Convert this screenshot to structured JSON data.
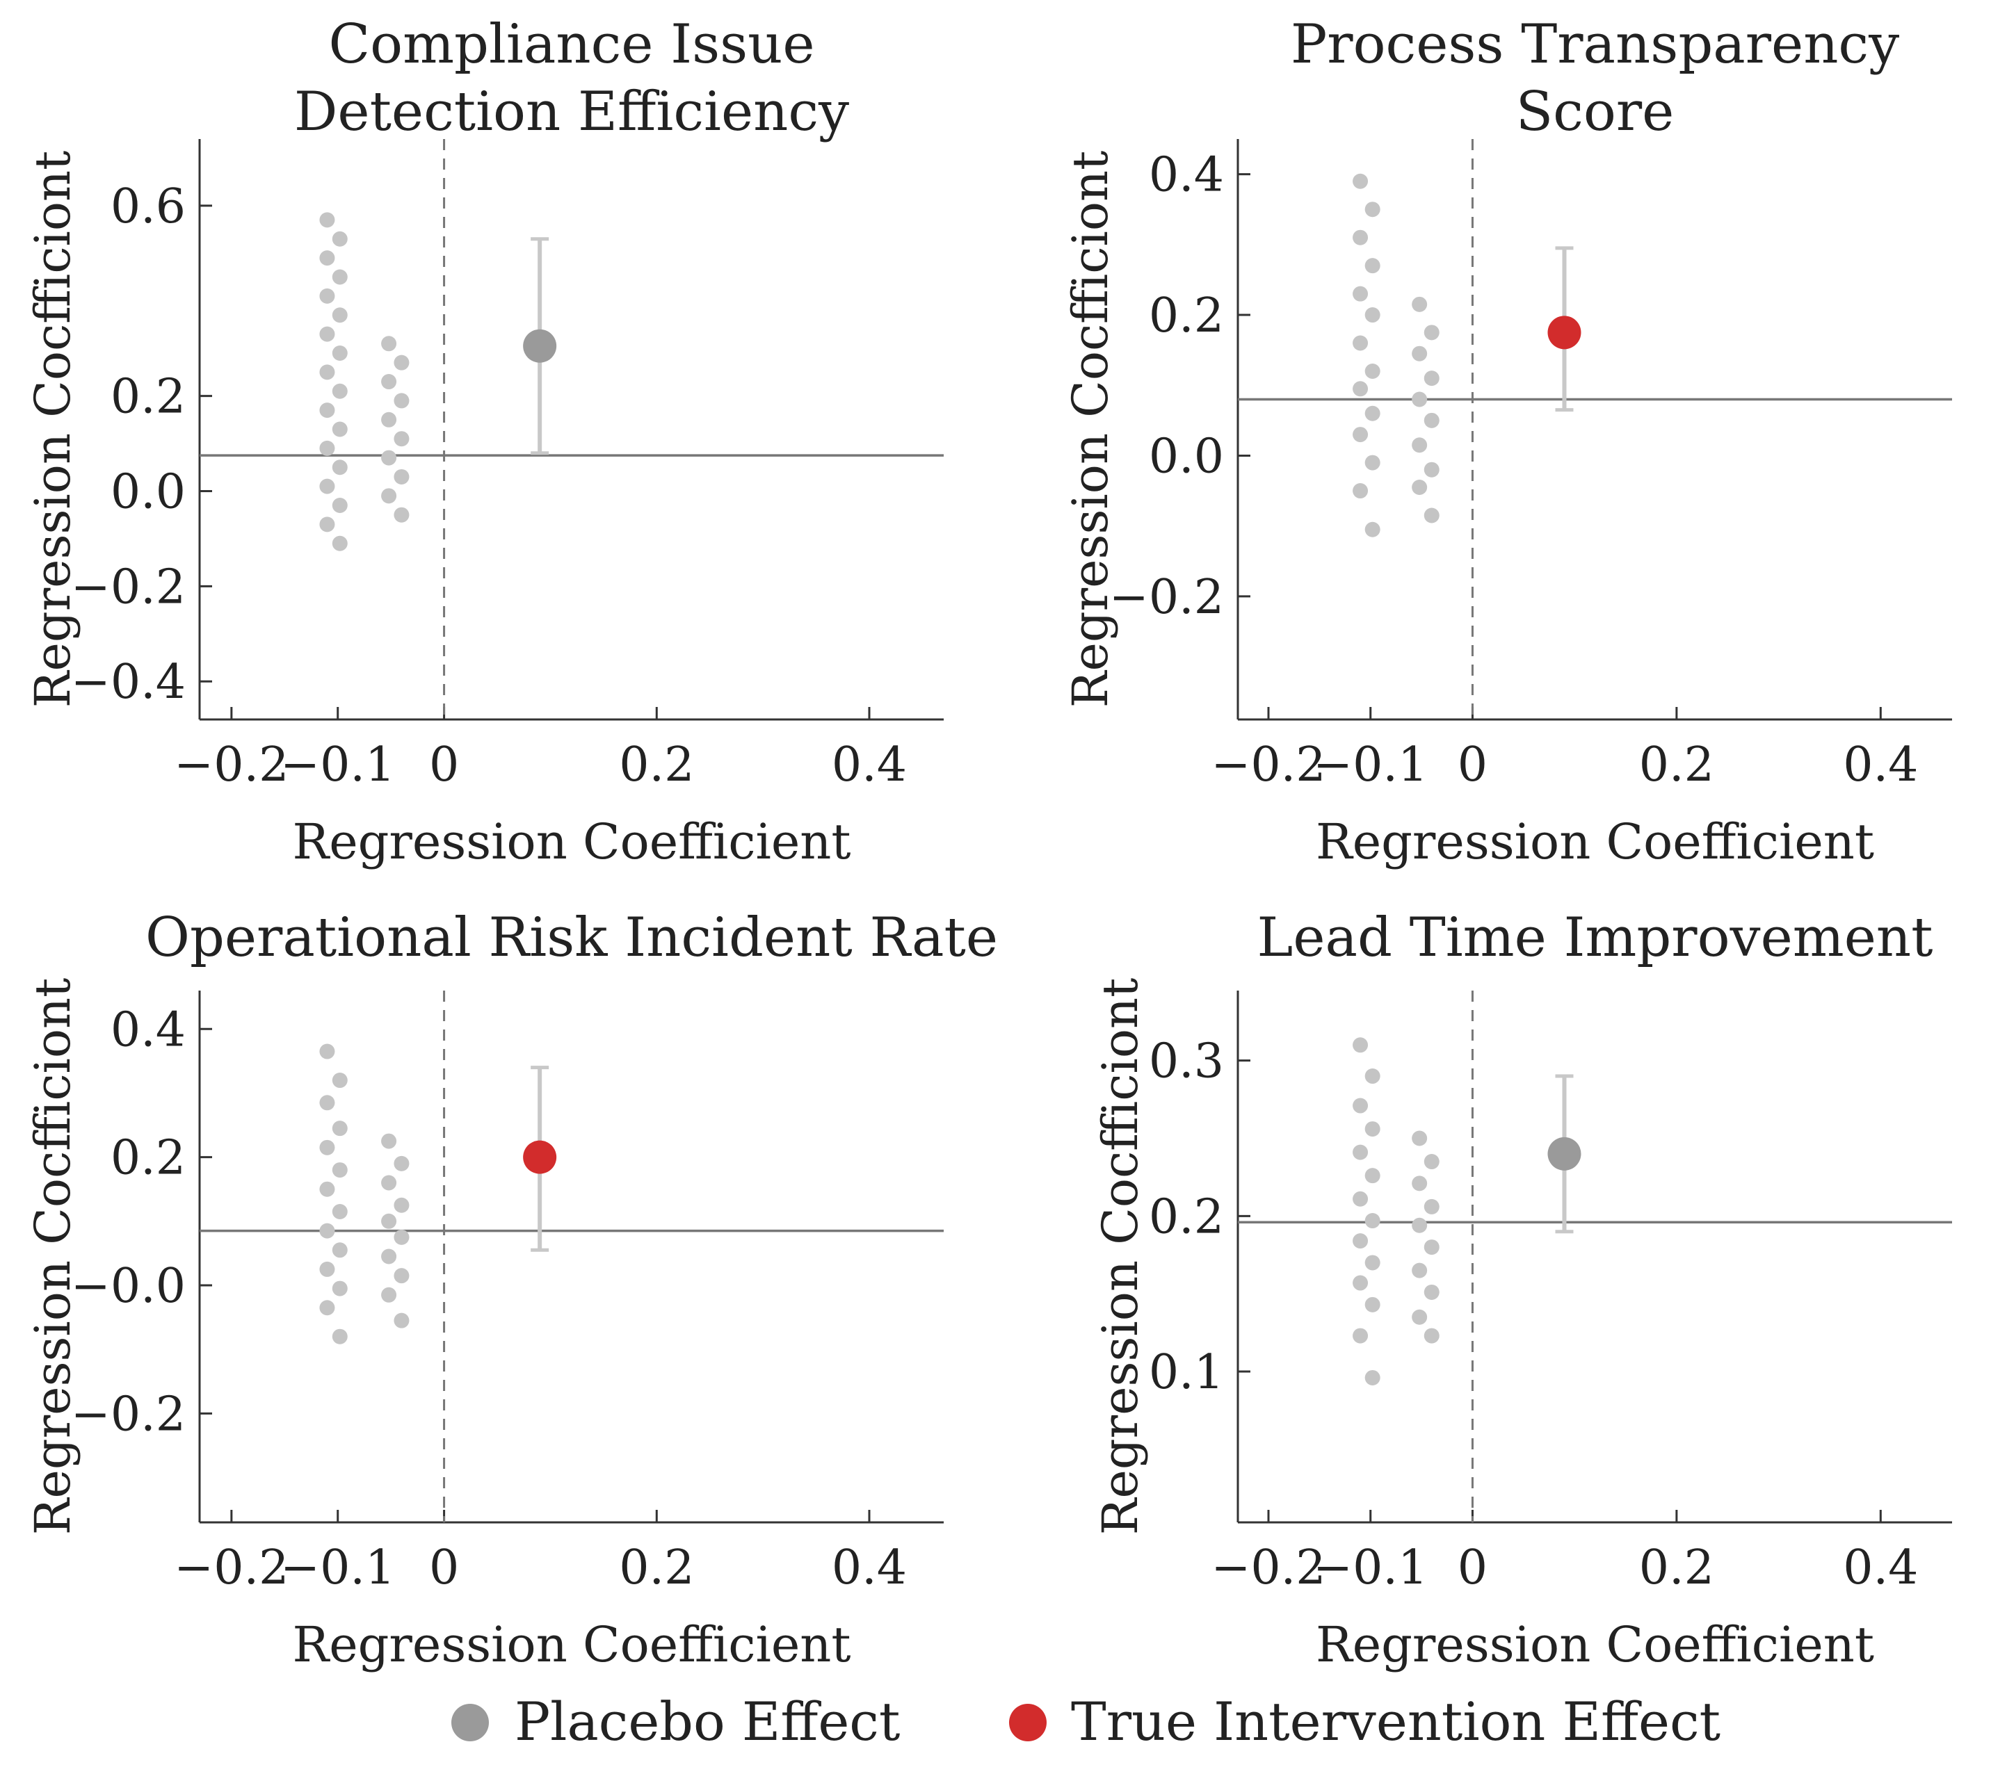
{
  "chart_data": [
    {
      "type": "scatter",
      "title": [
        "Compliance Issue",
        "Detection Efficiency"
      ],
      "xlabel": "Regression Coefficient",
      "ylabel": "Regression Cocfficiont",
      "xlim": [
        -0.23,
        0.47
      ],
      "ylim": [
        -0.48,
        0.74
      ],
      "xticks": [
        -0.2,
        -0.1,
        0,
        0.2,
        0.4
      ],
      "xtick_labels": [
        "−0.2",
        "−0.1",
        "0",
        "0.2",
        "0.4"
      ],
      "yticks": [
        0.6,
        0.2,
        0.0,
        -0.2,
        -0.4
      ],
      "ytick_labels": [
        "0.6",
        "0.2",
        "0.0",
        "−0.2",
        "−0.4"
      ],
      "hline": 0.075,
      "vline": 0,
      "placebo_points": [
        {
          "x": -0.11,
          "y": 0.57
        },
        {
          "x": -0.11,
          "y": 0.49
        },
        {
          "x": -0.11,
          "y": 0.41
        },
        {
          "x": -0.11,
          "y": 0.33
        },
        {
          "x": -0.11,
          "y": 0.25
        },
        {
          "x": -0.11,
          "y": 0.17
        },
        {
          "x": -0.11,
          "y": 0.09
        },
        {
          "x": -0.11,
          "y": 0.01
        },
        {
          "x": -0.11,
          "y": -0.07
        },
        {
          "x": -0.098,
          "y": 0.53
        },
        {
          "x": -0.098,
          "y": 0.45
        },
        {
          "x": -0.098,
          "y": 0.37
        },
        {
          "x": -0.098,
          "y": 0.29
        },
        {
          "x": -0.098,
          "y": 0.21
        },
        {
          "x": -0.098,
          "y": 0.13
        },
        {
          "x": -0.098,
          "y": 0.05
        },
        {
          "x": -0.098,
          "y": -0.03
        },
        {
          "x": -0.098,
          "y": -0.11
        },
        {
          "x": -0.052,
          "y": 0.31
        },
        {
          "x": -0.052,
          "y": 0.23
        },
        {
          "x": -0.052,
          "y": 0.15
        },
        {
          "x": -0.052,
          "y": 0.07
        },
        {
          "x": -0.052,
          "y": -0.01
        },
        {
          "x": -0.04,
          "y": 0.27
        },
        {
          "x": -0.04,
          "y": 0.19
        },
        {
          "x": -0.04,
          "y": 0.11
        },
        {
          "x": -0.04,
          "y": 0.03
        },
        {
          "x": -0.04,
          "y": -0.05
        }
      ],
      "estimate": {
        "x": 0.09,
        "y": 0.305,
        "ci": [
          0.08,
          0.53
        ],
        "effect": "placebo"
      }
    },
    {
      "type": "scatter",
      "title": [
        "Process Transparency",
        "Score"
      ],
      "xlabel": "Regression Coefficient",
      "ylabel": "Regression Cocfficiont",
      "xlim": [
        -0.23,
        0.47
      ],
      "ylim": [
        -0.375,
        0.45
      ],
      "xticks": [
        -0.2,
        -0.1,
        0,
        0.2,
        0.4
      ],
      "xtick_labels": [
        "−0.2",
        "−0.1",
        "0",
        "0.2",
        "0.4"
      ],
      "yticks": [
        0.4,
        0.2,
        0.0,
        -0.2
      ],
      "ytick_labels": [
        "0.4",
        "0.2",
        "0.0",
        "−0.2"
      ],
      "hline": 0.08,
      "vline": 0,
      "placebo_points": [
        {
          "x": -0.11,
          "y": 0.39
        },
        {
          "x": -0.11,
          "y": 0.31
        },
        {
          "x": -0.11,
          "y": 0.23
        },
        {
          "x": -0.11,
          "y": 0.16
        },
        {
          "x": -0.11,
          "y": 0.095
        },
        {
          "x": -0.11,
          "y": 0.03
        },
        {
          "x": -0.11,
          "y": -0.05
        },
        {
          "x": -0.098,
          "y": 0.35
        },
        {
          "x": -0.098,
          "y": 0.27
        },
        {
          "x": -0.098,
          "y": 0.2
        },
        {
          "x": -0.098,
          "y": 0.12
        },
        {
          "x": -0.098,
          "y": 0.06
        },
        {
          "x": -0.098,
          "y": -0.01
        },
        {
          "x": -0.098,
          "y": -0.105
        },
        {
          "x": -0.052,
          "y": 0.215
        },
        {
          "x": -0.052,
          "y": 0.145
        },
        {
          "x": -0.052,
          "y": 0.08
        },
        {
          "x": -0.052,
          "y": 0.015
        },
        {
          "x": -0.052,
          "y": -0.045
        },
        {
          "x": -0.04,
          "y": 0.175
        },
        {
          "x": -0.04,
          "y": 0.11
        },
        {
          "x": -0.04,
          "y": 0.05
        },
        {
          "x": -0.04,
          "y": -0.02
        },
        {
          "x": -0.04,
          "y": -0.085
        }
      ],
      "estimate": {
        "x": 0.09,
        "y": 0.175,
        "ci": [
          0.065,
          0.295
        ],
        "effect": "true"
      }
    },
    {
      "type": "scatter",
      "title": [
        "Operational Risk Incident Rate"
      ],
      "xlabel": "Regression Coefficient",
      "ylabel": "Regression Cocfficiont",
      "xlim": [
        -0.23,
        0.47
      ],
      "ylim": [
        -0.37,
        0.46
      ],
      "xticks": [
        -0.2,
        -0.1,
        0,
        0.2,
        0.4
      ],
      "xtick_labels": [
        "−0.2",
        "−0.1",
        "0",
        "0.2",
        "0.4"
      ],
      "yticks": [
        0.4,
        0.2,
        0.0,
        -0.2
      ],
      "ytick_labels": [
        "0.4",
        "0.2",
        "−0.0",
        "−0.2"
      ],
      "hline": 0.085,
      "vline": 0,
      "placebo_points": [
        {
          "x": -0.11,
          "y": 0.365
        },
        {
          "x": -0.11,
          "y": 0.285
        },
        {
          "x": -0.11,
          "y": 0.215
        },
        {
          "x": -0.11,
          "y": 0.15
        },
        {
          "x": -0.11,
          "y": 0.085
        },
        {
          "x": -0.11,
          "y": 0.025
        },
        {
          "x": -0.11,
          "y": -0.035
        },
        {
          "x": -0.098,
          "y": 0.32
        },
        {
          "x": -0.098,
          "y": 0.245
        },
        {
          "x": -0.098,
          "y": 0.18
        },
        {
          "x": -0.098,
          "y": 0.115
        },
        {
          "x": -0.098,
          "y": 0.055
        },
        {
          "x": -0.098,
          "y": -0.005
        },
        {
          "x": -0.098,
          "y": -0.08
        },
        {
          "x": -0.052,
          "y": 0.225
        },
        {
          "x": -0.052,
          "y": 0.16
        },
        {
          "x": -0.052,
          "y": 0.1
        },
        {
          "x": -0.052,
          "y": 0.045
        },
        {
          "x": -0.052,
          "y": -0.015
        },
        {
          "x": -0.04,
          "y": 0.19
        },
        {
          "x": -0.04,
          "y": 0.125
        },
        {
          "x": -0.04,
          "y": 0.075
        },
        {
          "x": -0.04,
          "y": 0.015
        },
        {
          "x": -0.04,
          "y": -0.055
        }
      ],
      "estimate": {
        "x": 0.09,
        "y": 0.2,
        "ci": [
          0.055,
          0.34
        ],
        "effect": "true"
      }
    },
    {
      "type": "scatter",
      "title": [
        "Lead Time Improvement"
      ],
      "xlabel": "Regression Coefficient",
      "ylabel": "Regression Cocfficiont",
      "xlim": [
        -0.23,
        0.47
      ],
      "ylim": [
        0.003,
        0.345
      ],
      "xticks": [
        -0.2,
        -0.1,
        0,
        0.2,
        0.4
      ],
      "xtick_labels": [
        "−0.2",
        "−0.1",
        "0",
        "0.2",
        "0.4"
      ],
      "yticks": [
        0.3,
        0.2,
        0.1
      ],
      "ytick_labels": [
        "0.3",
        "0.2",
        "0.1"
      ],
      "hline": 0.196,
      "vline": 0,
      "placebo_points": [
        {
          "x": -0.11,
          "y": 0.31
        },
        {
          "x": -0.11,
          "y": 0.271
        },
        {
          "x": -0.11,
          "y": 0.241
        },
        {
          "x": -0.11,
          "y": 0.211
        },
        {
          "x": -0.11,
          "y": 0.184
        },
        {
          "x": -0.11,
          "y": 0.157
        },
        {
          "x": -0.11,
          "y": 0.123
        },
        {
          "x": -0.098,
          "y": 0.29
        },
        {
          "x": -0.098,
          "y": 0.256
        },
        {
          "x": -0.098,
          "y": 0.226
        },
        {
          "x": -0.098,
          "y": 0.197
        },
        {
          "x": -0.098,
          "y": 0.17
        },
        {
          "x": -0.098,
          "y": 0.143
        },
        {
          "x": -0.098,
          "y": 0.096
        },
        {
          "x": -0.052,
          "y": 0.25
        },
        {
          "x": -0.052,
          "y": 0.221
        },
        {
          "x": -0.052,
          "y": 0.194
        },
        {
          "x": -0.052,
          "y": 0.165
        },
        {
          "x": -0.052,
          "y": 0.135
        },
        {
          "x": -0.04,
          "y": 0.235
        },
        {
          "x": -0.04,
          "y": 0.206
        },
        {
          "x": -0.04,
          "y": 0.18
        },
        {
          "x": -0.04,
          "y": 0.151
        },
        {
          "x": -0.04,
          "y": 0.123
        }
      ],
      "estimate": {
        "x": 0.09,
        "y": 0.24,
        "ci": [
          0.19,
          0.29
        ],
        "effect": "placebo"
      }
    }
  ],
  "legend": {
    "placement": "bottom-center",
    "items": [
      {
        "label": "Placebo Effect",
        "color": "#9a9a9a"
      },
      {
        "label": "True Intervention Effect",
        "color": "#d22c2c"
      }
    ]
  },
  "colors": {
    "placebo_dot": "#c4c4c4",
    "placebo_estimate": "#9a9a9a",
    "true_estimate": "#d22c2c",
    "error_bar": "#c8c8c8",
    "axis": "#333333",
    "reference_line": "#777777"
  }
}
